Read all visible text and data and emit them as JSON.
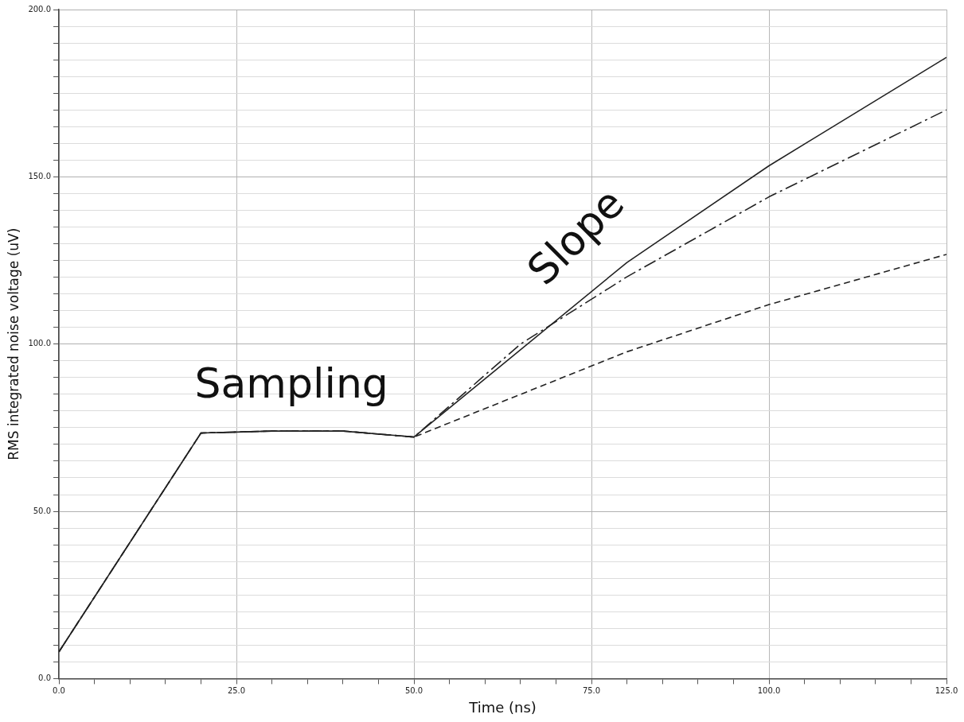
{
  "chart_data": {
    "type": "line",
    "xlabel": "Time (ns)",
    "ylabel": "RMS integrated noise voltage (uV)",
    "series": [
      {
        "color": "#222222",
        "line_style": "solid",
        "x": [
          0,
          20,
          25,
          30,
          40,
          50,
          80,
          100,
          125
        ],
        "values": [
          8,
          73.4,
          73.7,
          74,
          74,
          72.2,
          124.4,
          153.3,
          185.7
        ]
      },
      {
        "color": "#222222",
        "line_style": "dashdot",
        "x": [
          0,
          20,
          25,
          30,
          40,
          50,
          65,
          80,
          100,
          125
        ],
        "values": [
          8,
          73.4,
          73.7,
          74,
          74,
          72.2,
          100,
          120.1,
          144,
          170
        ]
      },
      {
        "color": "#222222",
        "line_style": "dashed",
        "x": [
          0,
          20,
          25,
          30,
          40,
          50,
          80,
          100,
          125
        ],
        "values": [
          8,
          73.4,
          73.7,
          74,
          74,
          72.2,
          97.7,
          111.8,
          126.8
        ]
      }
    ],
    "xlim": [
      0,
      125
    ],
    "ylim": [
      0,
      200
    ],
    "xticks": [
      {
        "value": 0,
        "label": "0.0"
      },
      {
        "value": 5,
        "label": null
      },
      {
        "value": 10,
        "label": null
      },
      {
        "value": 15,
        "label": null
      },
      {
        "value": 20,
        "label": null
      },
      {
        "value": 25,
        "label": "25.0"
      },
      {
        "value": 30,
        "label": null
      },
      {
        "value": 35,
        "label": null
      },
      {
        "value": 40,
        "label": null
      },
      {
        "value": 45,
        "label": null
      },
      {
        "value": 50,
        "label": "50.0"
      },
      {
        "value": 55,
        "label": null
      },
      {
        "value": 60,
        "label": null
      },
      {
        "value": 65,
        "label": null
      },
      {
        "value": 70,
        "label": null
      },
      {
        "value": 75,
        "label": "75.0"
      },
      {
        "value": 80,
        "label": null
      },
      {
        "value": 85,
        "label": null
      },
      {
        "value": 90,
        "label": null
      },
      {
        "value": 95,
        "label": null
      },
      {
        "value": 100,
        "label": "100.0"
      },
      {
        "value": 105,
        "label": null
      },
      {
        "value": 110,
        "label": null
      },
      {
        "value": 115,
        "label": null
      },
      {
        "value": 120,
        "label": null
      },
      {
        "value": 125,
        "label": "125.0"
      }
    ],
    "yticks": [
      {
        "value": 0,
        "label": "0.0"
      },
      {
        "value": 5,
        "label": null
      },
      {
        "value": 10,
        "label": null
      },
      {
        "value": 15,
        "label": null
      },
      {
        "value": 20,
        "label": null
      },
      {
        "value": 25,
        "label": null
      },
      {
        "value": 30,
        "label": null
      },
      {
        "value": 35,
        "label": null
      },
      {
        "value": 40,
        "label": null
      },
      {
        "value": 45,
        "label": null
      },
      {
        "value": 50,
        "label": "50.0"
      },
      {
        "value": 55,
        "label": null
      },
      {
        "value": 60,
        "label": null
      },
      {
        "value": 65,
        "label": null
      },
      {
        "value": 70,
        "label": null
      },
      {
        "value": 75,
        "label": null
      },
      {
        "value": 80,
        "label": null
      },
      {
        "value": 85,
        "label": null
      },
      {
        "value": 90,
        "label": null
      },
      {
        "value": 95,
        "label": null
      },
      {
        "value": 100,
        "label": "100.0"
      },
      {
        "value": 105,
        "label": null
      },
      {
        "value": 110,
        "label": null
      },
      {
        "value": 115,
        "label": null
      },
      {
        "value": 120,
        "label": null
      },
      {
        "value": 125,
        "label": null
      },
      {
        "value": 130,
        "label": null
      },
      {
        "value": 135,
        "label": null
      },
      {
        "value": 140,
        "label": null
      },
      {
        "value": 145,
        "label": null
      },
      {
        "value": 150,
        "label": "150.0"
      },
      {
        "value": 155,
        "label": null
      },
      {
        "value": 160,
        "label": null
      },
      {
        "value": 165,
        "label": null
      },
      {
        "value": 170,
        "label": null
      },
      {
        "value": 175,
        "label": null
      },
      {
        "value": 180,
        "label": null
      },
      {
        "value": 185,
        "label": null
      },
      {
        "value": 190,
        "label": null
      },
      {
        "value": 195,
        "label": null
      },
      {
        "value": 200,
        "label": "200.0"
      }
    ],
    "grid": true,
    "legend": false,
    "marker": "none",
    "annotations": [
      "Sampling",
      "Slope"
    ]
  }
}
